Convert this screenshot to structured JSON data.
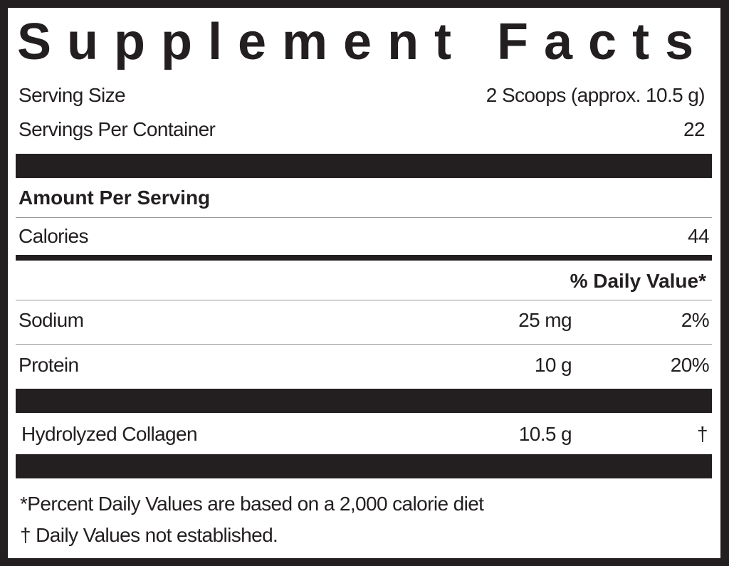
{
  "title": "Supplement Facts",
  "serving_size": {
    "label": "Serving Size",
    "value": "2 Scoops (approx. 10.5 g)"
  },
  "servings_per_container": {
    "label": "Servings Per Container",
    "value": "22"
  },
  "amount_per_serving": "Amount Per Serving",
  "calories": {
    "label": "Calories",
    "value": "44"
  },
  "daily_value_header": "% Daily Value*",
  "nutrients": [
    {
      "name": "Sodium",
      "amount": "25 mg",
      "dv": "2%"
    },
    {
      "name": "Protein",
      "amount": "10 g",
      "dv": "20%"
    }
  ],
  "ingredients": [
    {
      "name": "Hydrolyzed  Collagen",
      "amount": "10.5 g",
      "dv": "†"
    }
  ],
  "footnotes": [
    "*Percent Daily Values are based on a 2,000 calorie diet",
    "†  Daily Values not established."
  ]
}
